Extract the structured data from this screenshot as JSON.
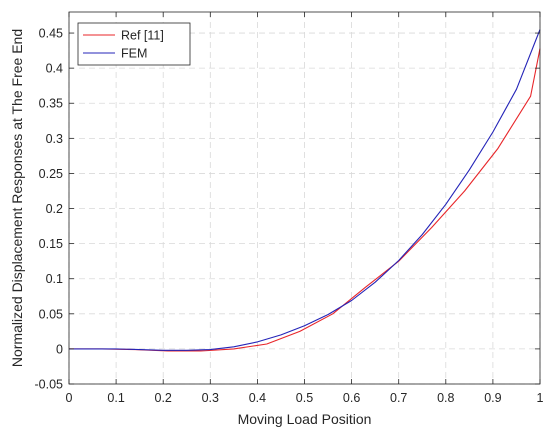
{
  "chart_data": {
    "type": "line",
    "title": "",
    "xlabel": "Moving Load Position",
    "ylabel": "Normalized Displacement Responses at The Free End",
    "xlim": [
      0,
      1
    ],
    "ylim": [
      -0.05,
      0.48
    ],
    "xticks": [
      "0",
      "0.1",
      "0.2",
      "0.3",
      "0.4",
      "0.5",
      "0.6",
      "0.7",
      "0.8",
      "0.9",
      "1"
    ],
    "yticks": [
      "-0.05",
      "0",
      "0.05",
      "0.1",
      "0.15",
      "0.2",
      "0.25",
      "0.3",
      "0.35",
      "0.4",
      "0.45"
    ],
    "grid": true,
    "legend_position": "top-left",
    "series": [
      {
        "name": "Ref [11]",
        "color": "#e8262a",
        "x": [
          0,
          0.07,
          0.14,
          0.21,
          0.28,
          0.35,
          0.42,
          0.49,
          0.56,
          0.63,
          0.7,
          0.77,
          0.84,
          0.91,
          0.98,
          1.0
        ],
        "y": [
          0,
          0,
          -0.001,
          -0.003,
          -0.003,
          0,
          0.007,
          0.025,
          0.05,
          0.088,
          0.125,
          0.173,
          0.225,
          0.285,
          0.36,
          0.428
        ]
      },
      {
        "name": "FEM",
        "color": "#2424b8",
        "x": [
          0,
          0.05,
          0.1,
          0.15,
          0.2,
          0.25,
          0.3,
          0.35,
          0.4,
          0.45,
          0.5,
          0.55,
          0.6,
          0.65,
          0.7,
          0.75,
          0.8,
          0.85,
          0.9,
          0.95,
          1.0
        ],
        "y": [
          0,
          0,
          0,
          -0.001,
          -0.002,
          -0.002,
          -0.001,
          0.003,
          0.01,
          0.02,
          0.033,
          0.049,
          0.069,
          0.095,
          0.126,
          0.163,
          0.206,
          0.255,
          0.309,
          0.37,
          0.455
        ]
      }
    ]
  }
}
